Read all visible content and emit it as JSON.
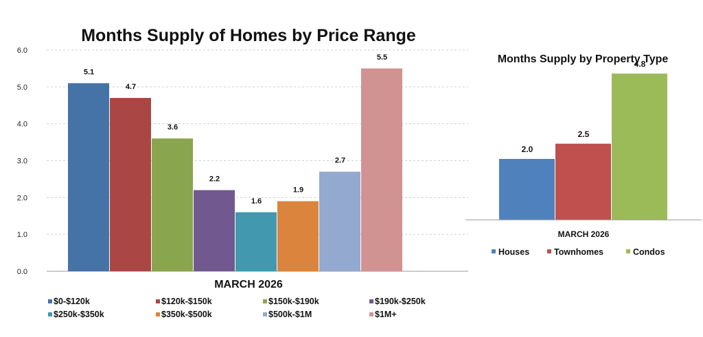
{
  "colors": {
    "blue": "#4572A7",
    "red": "#AA4643",
    "green": "#89A54E",
    "purple": "#71588F",
    "teal": "#4198AF",
    "orange": "#DB843D",
    "lightblue": "#93A9CF",
    "pink": "#D19392",
    "blue2": "#4F81BD",
    "red2": "#C0504D",
    "green2": "#9BBB59"
  },
  "chart_data": [
    {
      "type": "bar",
      "title": "Months Supply of Homes by Price Range",
      "xlabel": "MARCH 2026",
      "ylabel": "",
      "ylim": [
        0,
        6
      ],
      "yticks": [
        "0.0",
        "1.0",
        "2.0",
        "3.0",
        "4.0",
        "5.0",
        "6.0"
      ],
      "grid": true,
      "legend_position": "bottom",
      "categories": [
        "MARCH 2026"
      ],
      "series": [
        {
          "name": "$0-$120k",
          "values": [
            5.1
          ],
          "label": "5.1",
          "color": "#4572A7"
        },
        {
          "name": "$120k-$150k",
          "values": [
            4.7
          ],
          "label": "4.7",
          "color": "#AA4643"
        },
        {
          "name": "$150k-$190k",
          "values": [
            3.6
          ],
          "label": "3.6",
          "color": "#89A54E"
        },
        {
          "name": "$190k-$250k",
          "values": [
            2.2
          ],
          "label": "2.2",
          "color": "#71588F"
        },
        {
          "name": "$250k-$350k",
          "values": [
            1.6
          ],
          "label": "1.6",
          "color": "#4198AF"
        },
        {
          "name": "$350k-$500k",
          "values": [
            1.9
          ],
          "label": "1.9",
          "color": "#DB843D"
        },
        {
          "name": "$500k-$1M",
          "values": [
            2.7
          ],
          "label": "2.7",
          "color": "#93A9CF"
        },
        {
          "name": "$1M+",
          "values": [
            5.5
          ],
          "label": "5.5",
          "color": "#D19392"
        }
      ]
    },
    {
      "type": "bar",
      "title": "Months Supply by Property Type",
      "xlabel": "MARCH 2026",
      "ylabel": "",
      "ylim": [
        0,
        6
      ],
      "grid": false,
      "legend_position": "bottom",
      "categories": [
        "MARCH 2026"
      ],
      "series": [
        {
          "name": "Houses",
          "values": [
            2.0
          ],
          "label": "2.0",
          "color": "#4F81BD"
        },
        {
          "name": "Townhomes",
          "values": [
            2.5
          ],
          "label": "2.5",
          "color": "#C0504D"
        },
        {
          "name": "Condos",
          "values": [
            4.8
          ],
          "label": "4.8",
          "color": "#9BBB59"
        }
      ]
    }
  ]
}
